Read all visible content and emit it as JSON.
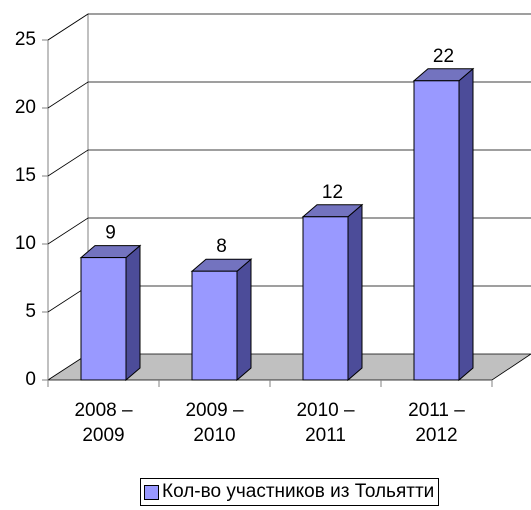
{
  "chart_data": {
    "type": "bar3d",
    "categories": [
      "2008 – 2009",
      "2009 – 2010",
      "2010 – 2011",
      "2011 – 2012"
    ],
    "series": [
      {
        "name": "Кол-во участников из Тольятти",
        "color": "#9999ff",
        "values": [
          9,
          8,
          12,
          22
        ]
      }
    ],
    "ylim": [
      0,
      25
    ],
    "yticks": [
      0,
      5,
      10,
      15,
      20,
      25
    ],
    "grid": true,
    "legend": "bottom"
  }
}
